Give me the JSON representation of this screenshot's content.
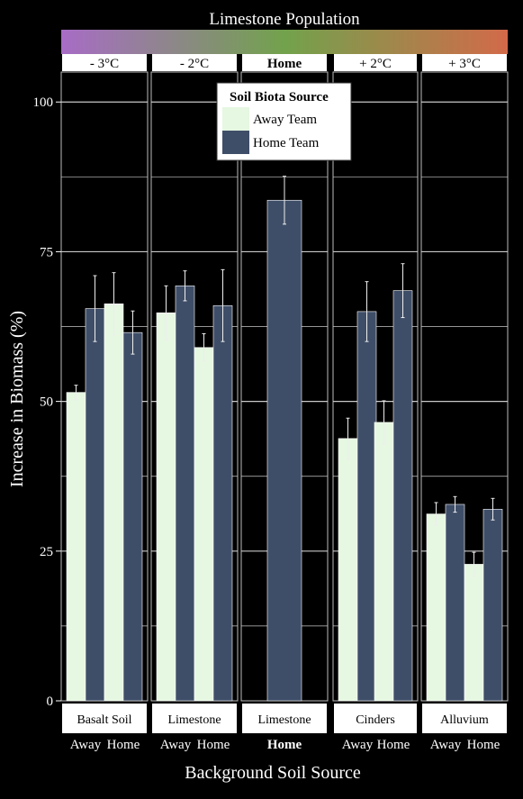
{
  "chart_data": {
    "type": "bar",
    "title": "Limestone Population",
    "xlabel": "Background Soil Source",
    "ylabel": "Increase in Biomass (%)",
    "ylim": [
      0,
      105
    ],
    "yticks": [
      0,
      25,
      50,
      75,
      100
    ],
    "grid": true,
    "gradient_colors": [
      "#a86cc6",
      "#72a24c",
      "#d26a4a"
    ],
    "colors": {
      "away": "#e6f7e2",
      "home": "#3f4e68"
    },
    "legend": {
      "title": "Soil Biota Source",
      "placement": "top-center",
      "entries": [
        {
          "key": "away",
          "label": "Away Team"
        },
        {
          "key": "home",
          "label": "Home Team"
        }
      ]
    },
    "panels": [
      {
        "strip": "- 3°C",
        "soil": "Basalt Soil",
        "groups": [
          {
            "label": "Away",
            "bars": [
              {
                "series": "away",
                "value": 51.5,
                "err": 1.2
              },
              {
                "series": "home",
                "value": 65.5,
                "err": 5.5
              }
            ]
          },
          {
            "label": "Home",
            "bars": [
              {
                "series": "away",
                "value": 66.3,
                "err": 5.2
              },
              {
                "series": "home",
                "value": 61.5,
                "err": 3.6
              }
            ]
          }
        ]
      },
      {
        "strip": "- 2°C",
        "soil": "Limestone",
        "groups": [
          {
            "label": "Away",
            "bars": [
              {
                "series": "away",
                "value": 64.8,
                "err": 4.5
              },
              {
                "series": "home",
                "value": 69.3,
                "err": 2.5
              }
            ]
          },
          {
            "label": "Home",
            "bars": [
              {
                "series": "away",
                "value": 59.0,
                "err": 2.3
              },
              {
                "series": "home",
                "value": 66.0,
                "err": 6.0
              }
            ]
          }
        ]
      },
      {
        "strip": "Home",
        "soil": "Limestone",
        "bold": true,
        "groups": [
          {
            "label": "Home",
            "bars": [
              {
                "series": "home",
                "value": 83.6,
                "err": 4.0
              }
            ]
          }
        ]
      },
      {
        "strip": "+ 2°C",
        "soil": "Cinders",
        "groups": [
          {
            "label": "Away",
            "bars": [
              {
                "series": "away",
                "value": 43.8,
                "err": 3.4
              },
              {
                "series": "home",
                "value": 65.0,
                "err": 5.0
              }
            ]
          },
          {
            "label": "Home",
            "bars": [
              {
                "series": "away",
                "value": 46.5,
                "err": 3.6
              },
              {
                "series": "home",
                "value": 68.5,
                "err": 4.5
              }
            ]
          }
        ]
      },
      {
        "strip": "+ 3°C",
        "soil": "Alluvium",
        "groups": [
          {
            "label": "Away",
            "bars": [
              {
                "series": "away",
                "value": 31.2,
                "err": 1.9
              },
              {
                "series": "home",
                "value": 32.8,
                "err": 1.3
              }
            ]
          },
          {
            "label": "Home",
            "bars": [
              {
                "series": "away",
                "value": 22.8,
                "err": 2.0
              },
              {
                "series": "home",
                "value": 32.0,
                "err": 1.8
              }
            ]
          }
        ]
      }
    ]
  }
}
